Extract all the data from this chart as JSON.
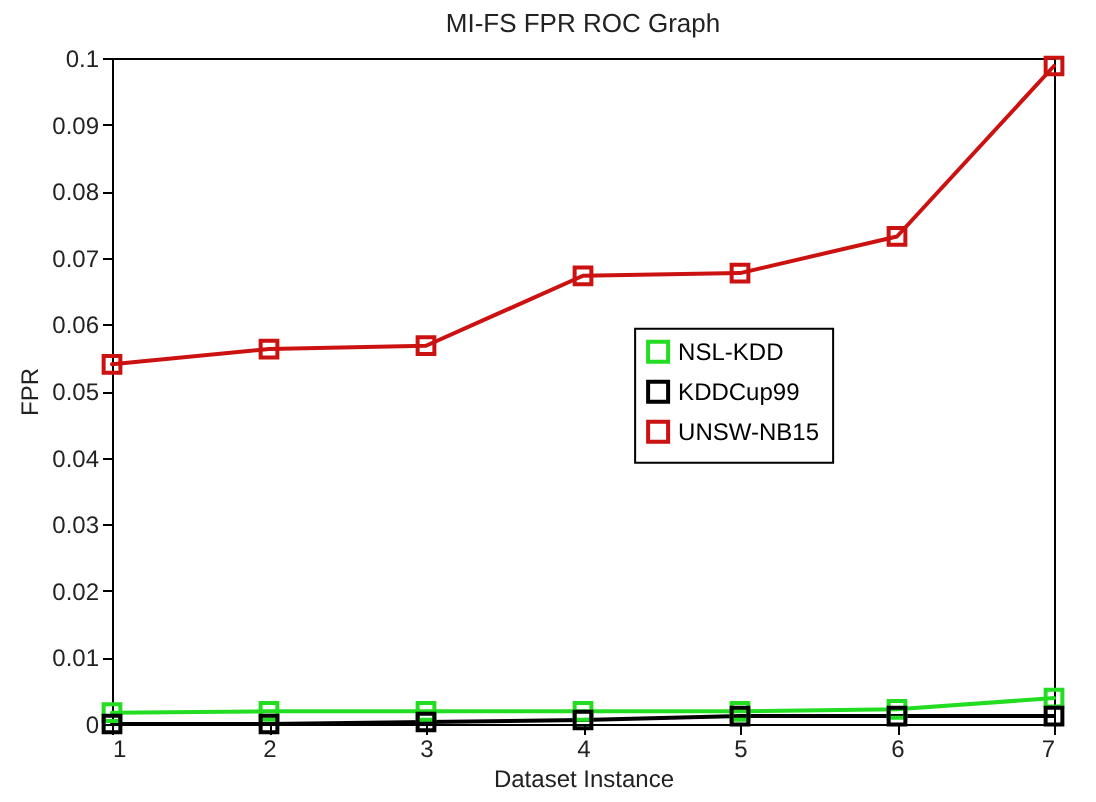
{
  "chart_data": {
    "type": "line",
    "title": "MI-FS FPR ROC Graph",
    "xlabel": "Dataset Instance",
    "ylabel": "FPR",
    "x": [
      1,
      2,
      3,
      4,
      5,
      6,
      7
    ],
    "series": [
      {
        "name": "NSL-KDD",
        "color": "#22dd22",
        "values": [
          0.0017,
          0.0019,
          0.0019,
          0.0019,
          0.0019,
          0.0022,
          0.0039
        ]
      },
      {
        "name": "KDDCup99",
        "color": "#000000",
        "values": [
          0,
          0,
          0.0003,
          0.0006,
          0.0012,
          0.0012,
          0.0012
        ]
      },
      {
        "name": "UNSW-NB15",
        "color": "#cc1111",
        "values": [
          0.054,
          0.0563,
          0.0568,
          0.0673,
          0.0677,
          0.0732,
          0.0988
        ]
      }
    ],
    "xlim": [
      1,
      7
    ],
    "xticks": [
      1,
      2,
      3,
      4,
      5,
      6,
      7
    ],
    "ylim": [
      0,
      0.1
    ],
    "yticks": [
      0,
      0.01,
      0.02,
      0.03,
      0.04,
      0.05,
      0.06,
      0.07,
      0.08,
      0.09,
      0.1
    ],
    "grid": false,
    "legend": "right",
    "marker": "square",
    "line_style": "solid"
  }
}
